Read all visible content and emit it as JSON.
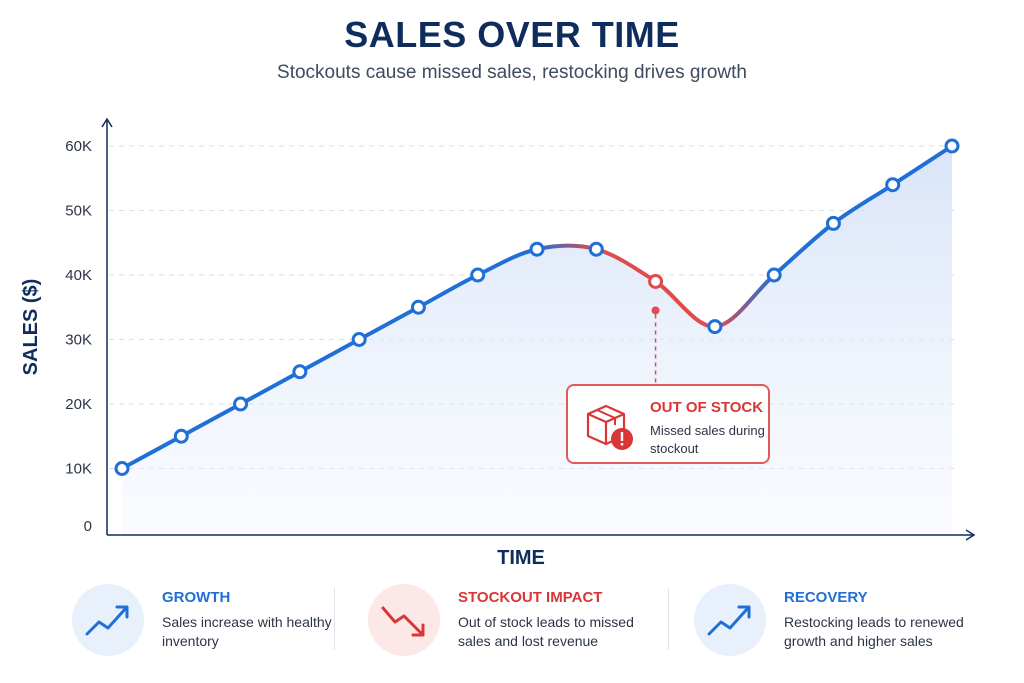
{
  "chart_data": {
    "type": "line",
    "title": "SALES OVER TIME",
    "subtitle": "Stockouts cause missed sales, restocking drives growth",
    "xlabel": "TIME",
    "ylabel": "SALES ($)",
    "ylim": [
      0,
      60000
    ],
    "yticks": [
      "0",
      "10K",
      "20K",
      "30K",
      "40K",
      "50K",
      "60K"
    ],
    "ytick_values": [
      0,
      10000,
      20000,
      30000,
      40000,
      50000,
      60000
    ],
    "grid": true,
    "x": [
      1,
      2,
      3,
      4,
      5,
      6,
      7,
      8,
      9,
      10,
      11,
      12,
      13,
      14,
      15
    ],
    "values": [
      10000,
      15000,
      20000,
      25000,
      30000,
      35000,
      40000,
      44000,
      44000,
      39000,
      32000,
      40000,
      48000,
      54000,
      60000
    ],
    "stockout_range": [
      9,
      11
    ],
    "colors": {
      "line": "#1f6fd6",
      "stockout": "#e04b4b",
      "fill": "#dde8fa"
    },
    "annotation": {
      "title": "OUT OF STOCK",
      "text": "Missed sales during stockout",
      "points_to_x": 10
    }
  },
  "panels": [
    {
      "title": "GROWTH",
      "text": "Sales increase with healthy inventory",
      "color": "#1f6fd6",
      "icon": "trend-up-icon"
    },
    {
      "title": "STOCKOUT IMPACT",
      "text": "Out of stock leads to missed sales and lost revenue",
      "color": "#d93636",
      "icon": "trend-down-icon"
    },
    {
      "title": "RECOVERY",
      "text": "Restocking leads to renewed growth and higher sales",
      "color": "#1f6fd6",
      "icon": "trend-up-icon"
    }
  ]
}
